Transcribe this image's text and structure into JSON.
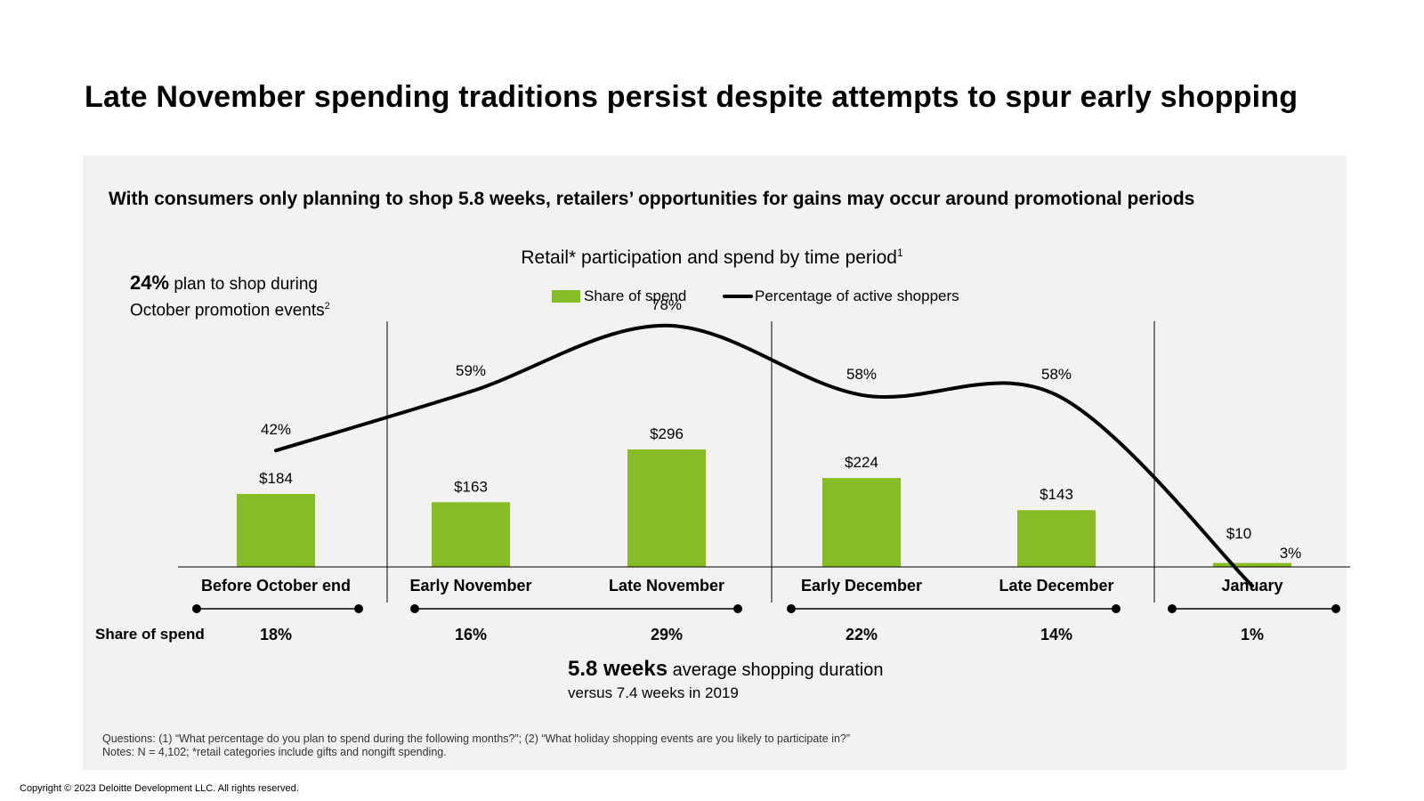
{
  "title": "Late November spending traditions persist despite attempts to spur early shopping",
  "subtitle": "With consumers only planning to shop 5.8 weeks, retailers’ opportunities for gains may occur around promotional periods",
  "callout": {
    "pct": "24%",
    "line1": " plan to shop during",
    "line2": "October promotion events",
    "sup": "2"
  },
  "duration": {
    "weeks": "5.8 weeks",
    "text": " average shopping duration",
    "compare": "versus 7.4 weeks in 2019"
  },
  "share_row_label": "Share of spend",
  "footnotes": [
    "Questions: (1) “What percentage do you plan to spend during the following months?”; (2) “What holiday shopping events are you likely to participate in?”",
    "Notes: N = 4,102; *retail categories include gifts and nongift spending."
  ],
  "copyright": "Copyright © 2023 Deloitte Development LLC. All rights reserved.",
  "colors": {
    "bar": "#86bc25",
    "line": "#000000",
    "panel": "#f2f2f1"
  },
  "chart_data": {
    "type": "bar",
    "title": "Retail* participation and spend by time period",
    "title_sup": "1",
    "categories": [
      "Before October end",
      "Early November",
      "Late November",
      "Early December",
      "Late December",
      "January"
    ],
    "series": [
      {
        "name": "Share of spend",
        "kind": "bar",
        "values": [
          184,
          163,
          296,
          224,
          143,
          10
        ],
        "labels": [
          "$184",
          "$163",
          "$296",
          "$224",
          "$143",
          "$10"
        ]
      },
      {
        "name": "Percentage of active shoppers",
        "kind": "line",
        "values": [
          42,
          59,
          78,
          58,
          58,
          3
        ],
        "labels": [
          "42%",
          "59%",
          "78%",
          "58%",
          "58%",
          "3%"
        ]
      }
    ],
    "share_of_spend": [
      "18%",
      "16%",
      "29%",
      "22%",
      "14%",
      "1%"
    ],
    "legend": "top-center",
    "grid": false
  }
}
